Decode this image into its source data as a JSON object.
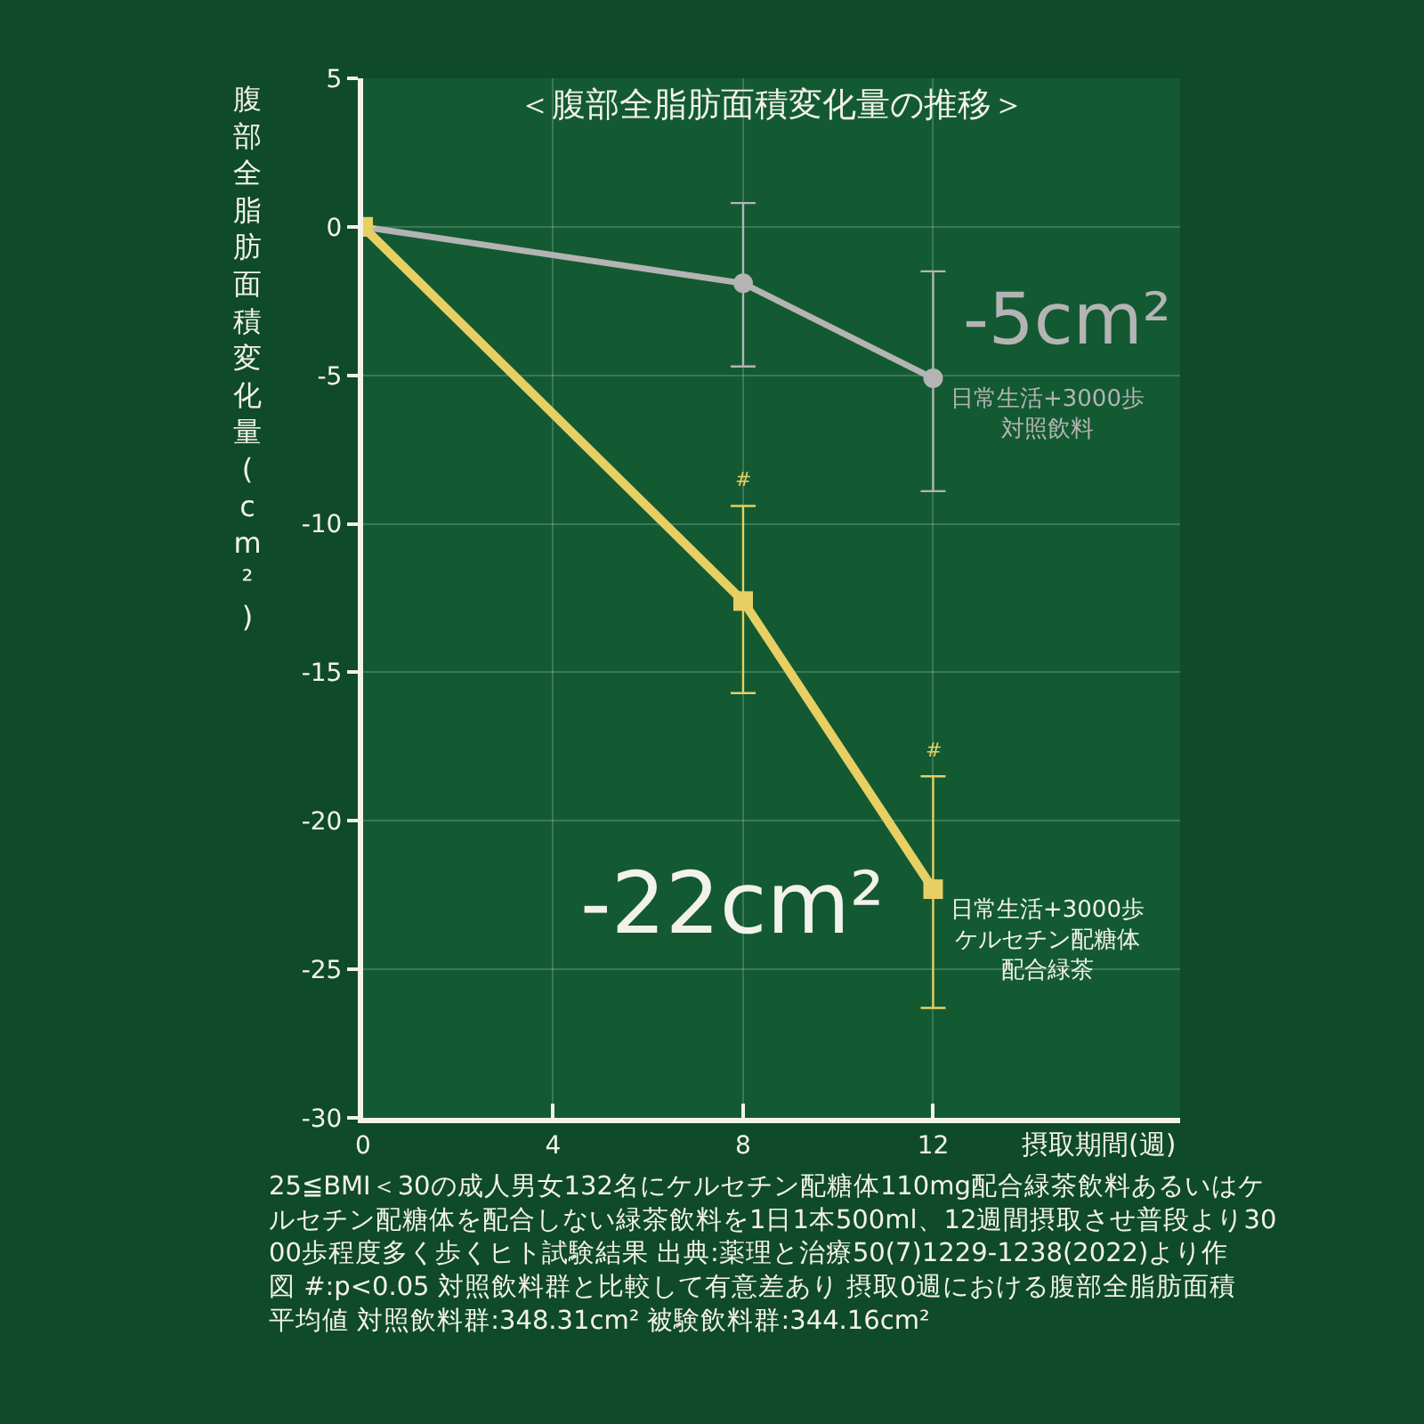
{
  "chart_data": {
    "type": "line",
    "title": "＜腹部全脂肪面積変化量の推移＞",
    "xlabel": "摂取期間(週)",
    "ylabel": "腹部全脂肪面積変化量(cm²)",
    "x": [
      0,
      8,
      12
    ],
    "xlim": [
      0,
      17.2
    ],
    "xticks": [
      0,
      4,
      8,
      12
    ],
    "ylim": [
      -30,
      5
    ],
    "yticks": [
      -30,
      -25,
      -20,
      -15,
      -10,
      -5,
      0,
      5
    ],
    "grid": true,
    "legend": false,
    "series": [
      {
        "name": "日常生活+3000歩対照飲料",
        "color": "#b4b4b4",
        "marker": "circle",
        "values": [
          0,
          -1.9,
          -5.1
        ],
        "errors": [
          null,
          [
            -4.7,
            0.8
          ],
          [
            -8.9,
            -1.5
          ]
        ]
      },
      {
        "name": "日常生活+3000歩ケルセチン配糖体配合緑茶",
        "color": "#e8cf63",
        "marker": "square",
        "values": [
          0,
          -12.6,
          -22.3
        ],
        "errors": [
          null,
          [
            -15.7,
            -9.4
          ],
          [
            -26.3,
            -18.5
          ]
        ]
      }
    ],
    "annotations": [
      "-5cm²",
      "-22cm²",
      {
        "text": "#",
        "x": 8,
        "y": -9.4
      },
      {
        "text": "#",
        "x": 12,
        "y": -18.5
      },
      "25≦BMI＜30の成人男女132名にケルセチン配糖体110mg配合緑茶飲料あるいはケルセチン配糖体を配合しない緑茶飲料を1日1本500ml、12週間摂取させ普段より3000歩程度多く歩くヒト試験結果 出典:薬理と治療50(7)1229-1238(2022)より作図 #:p<0.05 対照飲料群と比較して有意差あり 摂取0週における腹部全脂肪面積平均値 対照飲料群:348.31cm² 被験飲料群:344.16cm²"
    ]
  }
}
